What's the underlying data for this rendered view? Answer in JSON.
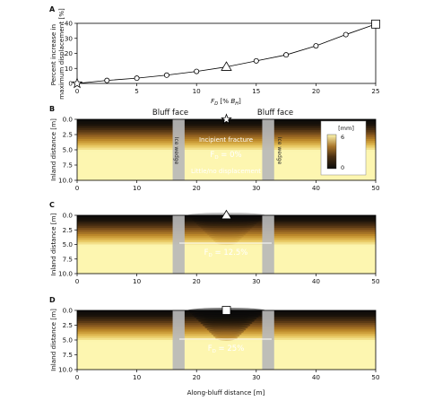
{
  "colors": {
    "line": "#000000",
    "ice": "#b8b8b8",
    "cmap": [
      "#fdf6b0",
      "#e6c35a",
      "#c08b2b",
      "#8a5a1f",
      "#4a2f12",
      "#1a120a",
      "#0b0b0b"
    ]
  },
  "chart_data": [
    {
      "panel": "A",
      "type": "line",
      "xlabel": "F_D [% B_H]",
      "ylabel": "Percent increase in maximum displacement [%]",
      "ylabel_lines": [
        "Percent increase in",
        "maximum displacement [%]"
      ],
      "xlim": [
        0,
        25
      ],
      "ylim": [
        0,
        40
      ],
      "xticks": [
        "0",
        "5",
        "10",
        "15",
        "20",
        "25"
      ],
      "yticks": [
        "0",
        "10",
        "20",
        "30",
        "40"
      ],
      "grid": false,
      "x": [
        0,
        2.5,
        5,
        7.5,
        10,
        12.5,
        15,
        17.5,
        20,
        22.5,
        25
      ],
      "y": [
        0,
        2,
        3.5,
        5.5,
        8,
        11,
        15,
        19,
        25,
        32.5,
        39.5
      ],
      "markers": [
        {
          "x": 0,
          "y": 0,
          "symbol": "star"
        },
        {
          "x": 12.5,
          "y": 11,
          "symbol": "triangle"
        },
        {
          "x": 25,
          "y": 39.5,
          "symbol": "square"
        }
      ]
    },
    {
      "panel": "B",
      "type": "heatmap",
      "xlabel": "",
      "ylabel": "Inland distance [m]",
      "xlim": [
        0,
        50
      ],
      "ylim": [
        10,
        0
      ],
      "xticks": [
        "0",
        "10",
        "20",
        "30",
        "40",
        "50"
      ],
      "yticks": [
        "0.0",
        "2.5",
        "5.0",
        "7.5",
        "10.0"
      ],
      "fd": 0,
      "marker": "star",
      "ice_wedges_x": [
        [
          16,
          18
        ],
        [
          31,
          33
        ]
      ],
      "colorbar": {
        "unit": "[mm]",
        "max_label": "6",
        "min_label": "0"
      },
      "labels": {
        "bluff_left": "Bluff face",
        "bluff_right": "Bluff face",
        "ice_wedge": "Ice wedge",
        "incipient": "Incipient fracture",
        "fd": "F",
        "fd_sub": "D",
        "fd_value": " = 0%",
        "little": "Little/no displacement"
      }
    },
    {
      "panel": "C",
      "type": "heatmap",
      "xlabel": "",
      "ylabel": "Inland distance [m]",
      "xlim": [
        0,
        50
      ],
      "ylim": [
        10,
        0
      ],
      "xticks": [
        "0",
        "10",
        "20",
        "30",
        "40",
        "50"
      ],
      "yticks": [
        "0.0",
        "2.5",
        "5.0",
        "7.5",
        "10.0"
      ],
      "fd": 12.5,
      "marker": "triangle",
      "ice_wedges_x": [
        [
          16,
          18
        ],
        [
          31,
          33
        ]
      ],
      "labels": {
        "fd": "F",
        "fd_sub": "D",
        "fd_value": " = 12.5%"
      }
    },
    {
      "panel": "D",
      "type": "heatmap",
      "xlabel": "Along-bluff distance [m]",
      "ylabel": "Inland distance [m]",
      "xlim": [
        0,
        50
      ],
      "ylim": [
        10,
        0
      ],
      "xticks": [
        "0",
        "10",
        "20",
        "30",
        "40",
        "50"
      ],
      "yticks": [
        "0.0",
        "2.5",
        "5.0",
        "7.5",
        "10.0"
      ],
      "fd": 25,
      "marker": "square",
      "ice_wedges_x": [
        [
          16,
          18
        ],
        [
          31,
          33
        ]
      ],
      "labels": {
        "fd": "F",
        "fd_sub": "D",
        "fd_value": " = 25%"
      }
    }
  ]
}
